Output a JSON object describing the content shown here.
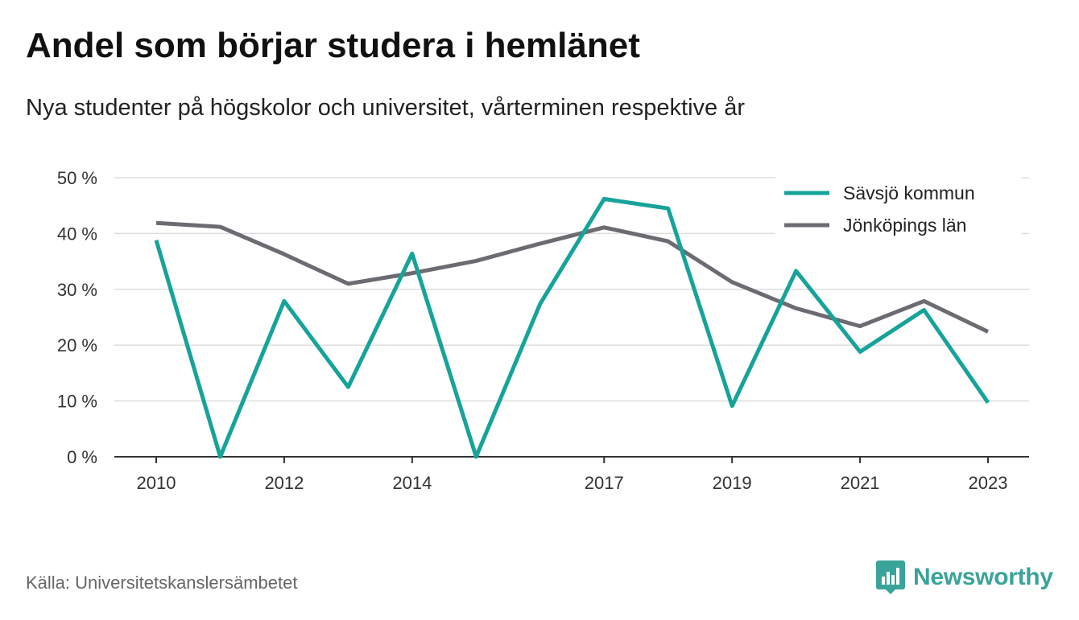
{
  "header": {
    "title": "Andel som börjar studera i hemlänet",
    "subtitle": "Nya studenter på högskolor och universitet, vårterminen respektive år"
  },
  "footer": {
    "source": "Källa: Universitetskanslersämbetet",
    "brand_name": "Newsworthy",
    "brand_icon": "bar-chart-bubble-icon",
    "brand_color": "#3aa39a"
  },
  "chart_data": {
    "type": "line",
    "x": [
      2010,
      2011,
      2012,
      2013,
      2014,
      2015,
      2016,
      2017,
      2018,
      2019,
      2020,
      2021,
      2022,
      2023
    ],
    "xticks": [
      2010,
      2012,
      2014,
      2017,
      2019,
      2021,
      2023
    ],
    "xtick_labels": [
      "2010",
      "2012",
      "2014",
      "2017",
      "2019",
      "2021",
      "2023"
    ],
    "yticks": [
      0,
      10,
      20,
      30,
      40,
      50
    ],
    "ytick_labels": [
      "0 %",
      "10 %",
      "20 %",
      "30 %",
      "40 %",
      "50 %"
    ],
    "ylim": [
      0,
      50
    ],
    "xlim": [
      2010,
      2023
    ],
    "grid": true,
    "legend_position": "top-right",
    "series": [
      {
        "name": "Sävsjö kommun",
        "color": "#16a39a",
        "values": [
          38.8,
          0,
          27.9,
          12.5,
          36.4,
          0,
          27.4,
          46.2,
          44.5,
          9.1,
          33.3,
          18.8,
          26.3,
          9.7
        ]
      },
      {
        "name": "Jönköpings län",
        "color": "#6d6a72",
        "values": [
          41.9,
          41.2,
          36.3,
          31.0,
          32.9,
          35.1,
          38.2,
          41.1,
          38.6,
          31.3,
          26.6,
          23.4,
          27.9,
          22.4
        ]
      }
    ]
  }
}
